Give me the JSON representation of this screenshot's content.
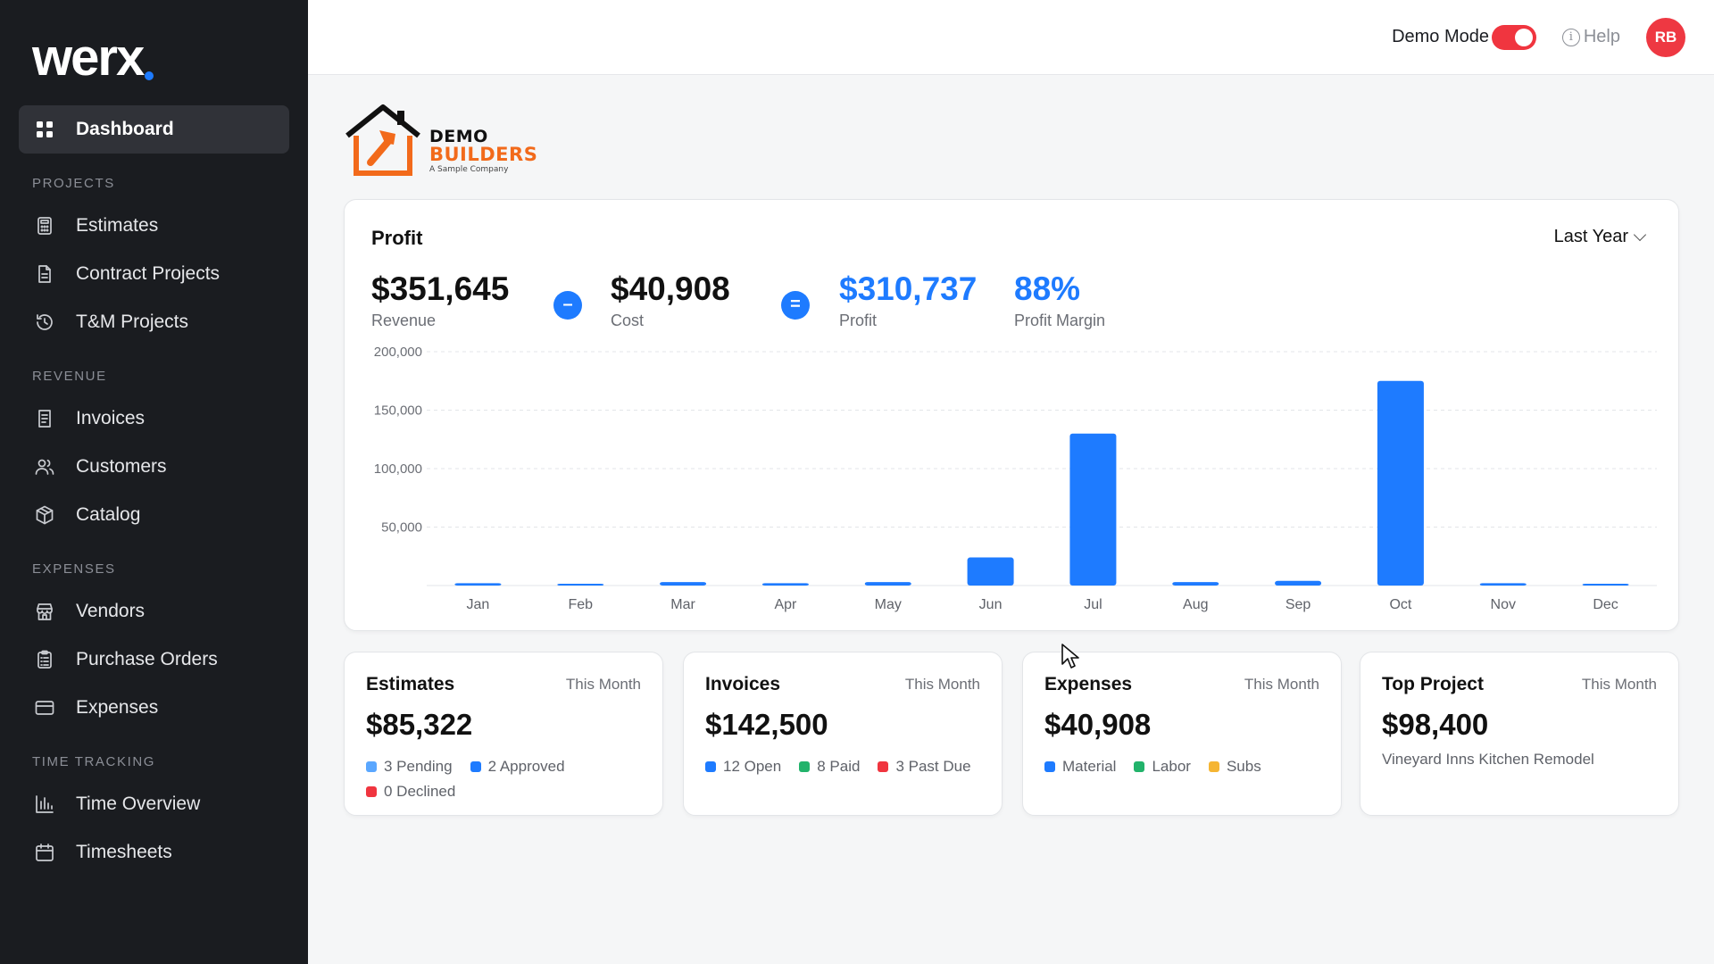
{
  "app": {
    "logo_text": "werx"
  },
  "sidebar": {
    "dashboard": {
      "label": "Dashboard",
      "icon": "dashboard-grid-icon"
    },
    "sections": [
      {
        "label": "PROJECTS",
        "items": [
          {
            "label": "Estimates",
            "icon": "calculator-icon"
          },
          {
            "label": "Contract Projects",
            "icon": "document-icon"
          },
          {
            "label": "T&M Projects",
            "icon": "history-clock-icon"
          }
        ]
      },
      {
        "label": "REVENUE",
        "items": [
          {
            "label": "Invoices",
            "icon": "receipt-icon"
          },
          {
            "label": "Customers",
            "icon": "users-icon"
          },
          {
            "label": "Catalog",
            "icon": "box-icon"
          }
        ]
      },
      {
        "label": "EXPENSES",
        "items": [
          {
            "label": "Vendors",
            "icon": "store-icon"
          },
          {
            "label": "Purchase Orders",
            "icon": "clipboard-icon"
          },
          {
            "label": "Expenses",
            "icon": "credit-card-icon"
          }
        ]
      },
      {
        "label": "TIME TRACKING",
        "items": [
          {
            "label": "Time Overview",
            "icon": "bar-chart-icon"
          },
          {
            "label": "Timesheets",
            "icon": "calendar-icon"
          }
        ]
      }
    ]
  },
  "topbar": {
    "demo_mode_label": "Demo Mode",
    "demo_mode_on": true,
    "help_label": "Help",
    "avatar_initials": "RB"
  },
  "company": {
    "name_line1": "DEMO",
    "name_line2": "BUILDERS",
    "tagline": "A Sample Company"
  },
  "profit": {
    "title": "Profit",
    "period": "Last Year",
    "revenue": {
      "value": "$351,645",
      "label": "Revenue"
    },
    "minus_symbol": "–",
    "cost": {
      "value": "$40,908",
      "label": "Cost"
    },
    "equals_symbol": "=",
    "profit": {
      "value": "$310,737",
      "label": "Profit"
    },
    "margin": {
      "value": "88%",
      "label": "Profit Margin"
    }
  },
  "chart_data": {
    "type": "bar",
    "categories": [
      "Jan",
      "Feb",
      "Mar",
      "Apr",
      "May",
      "Jun",
      "Jul",
      "Aug",
      "Sep",
      "Oct",
      "Nov",
      "Dec"
    ],
    "values": [
      2000,
      1000,
      3000,
      2000,
      3000,
      24000,
      130000,
      3000,
      4000,
      175000,
      2000,
      1000
    ],
    "ylim": [
      0,
      200000
    ],
    "yticks": [
      50000,
      100000,
      150000,
      200000
    ],
    "ytick_labels": [
      "50,000",
      "100,000",
      "150,000",
      "200,000"
    ],
    "grid": true,
    "color": "#1e7bff"
  },
  "stats": [
    {
      "title": "Estimates",
      "period": "This Month",
      "value": "$85,322",
      "legend": [
        {
          "label": "3 Pending",
          "color": "#5aa7ff"
        },
        {
          "label": "2 Approved",
          "color": "#1e7bff"
        },
        {
          "label": "0 Declined",
          "color": "#f0353f"
        }
      ]
    },
    {
      "title": "Invoices",
      "period": "This Month",
      "value": "$142,500",
      "legend": [
        {
          "label": "12 Open",
          "color": "#1e7bff"
        },
        {
          "label": "8 Paid",
          "color": "#22b36b"
        },
        {
          "label": "3 Past Due",
          "color": "#f0353f"
        }
      ]
    },
    {
      "title": "Expenses",
      "period": "This Month",
      "value": "$40,908",
      "legend": [
        {
          "label": "Material",
          "color": "#1e7bff"
        },
        {
          "label": "Labor",
          "color": "#22b36b"
        },
        {
          "label": "Subs",
          "color": "#f5b533"
        }
      ]
    },
    {
      "title": "Top Project",
      "period": "This Month",
      "value": "$98,400",
      "subtitle": "Vineyard Inns Kitchen Remodel"
    }
  ]
}
